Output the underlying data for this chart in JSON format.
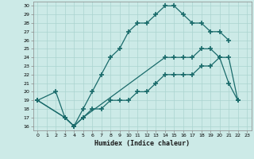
{
  "xlabel": "Humidex (Indice chaleur)",
  "background_color": "#cceae7",
  "line_color": "#1a6b6b",
  "grid_color": "#aad4d0",
  "xlim": [
    -0.5,
    23.5
  ],
  "ylim": [
    15.5,
    30.5
  ],
  "xticks": [
    0,
    1,
    2,
    3,
    4,
    5,
    6,
    7,
    8,
    9,
    10,
    11,
    12,
    13,
    14,
    15,
    16,
    17,
    18,
    19,
    20,
    21,
    22,
    23
  ],
  "yticks": [
    16,
    17,
    18,
    19,
    20,
    21,
    22,
    23,
    24,
    25,
    26,
    27,
    28,
    29,
    30
  ],
  "curve1_x": [
    0,
    2,
    3,
    4,
    5,
    6,
    7,
    8,
    9,
    10,
    11,
    12,
    13,
    14,
    15,
    16,
    17,
    18,
    19,
    20,
    21
  ],
  "curve1_y": [
    19,
    20,
    17,
    16,
    18,
    20,
    22,
    24,
    25,
    27,
    28,
    28,
    29,
    30,
    30,
    29,
    28,
    28,
    27,
    27,
    26
  ],
  "curve2_x": [
    0,
    3,
    4,
    5,
    14,
    15,
    16,
    17,
    18,
    19,
    20,
    21,
    22
  ],
  "curve2_y": [
    19,
    17,
    16,
    17,
    24,
    24,
    24,
    24,
    25,
    25,
    24,
    21,
    19
  ],
  "curve3_x": [
    0,
    3,
    4,
    5,
    6,
    7,
    8,
    9,
    10,
    11,
    12,
    13,
    14,
    15,
    16,
    17,
    18,
    19,
    20,
    21,
    22
  ],
  "curve3_y": [
    19,
    17,
    16,
    17,
    18,
    18,
    19,
    19,
    19,
    20,
    20,
    21,
    22,
    22,
    22,
    22,
    23,
    23,
    24,
    24,
    19
  ]
}
